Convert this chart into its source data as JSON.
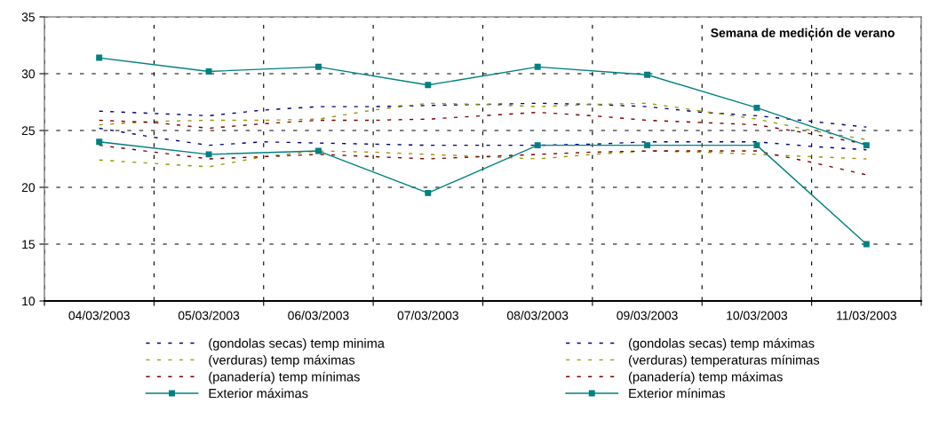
{
  "chart_data": {
    "type": "line",
    "title": "Semana de medición de verano",
    "x": [
      "2003-03-04T12:00",
      "2003-03-05T00:00",
      "2003-03-05T12:00",
      "2003-03-06T00:00",
      "2003-03-06T12:00",
      "2003-03-07T00:00",
      "2003-03-07T12:00",
      "2003-03-08T00:00",
      "2003-03-08T12:00",
      "2003-03-09T00:00",
      "2003-03-09T12:00",
      "2003-03-10T00:00",
      "2003-03-10T12:00",
      "2003-03-11T00:00",
      "2003-03-11T12:00"
    ],
    "xlim": [
      "2003-03-04T00:00",
      "2003-03-12T00:00"
    ],
    "xticks": [
      {
        "value": "2003-03-04T00:00",
        "label": null
      },
      {
        "value": "2003-03-04T12:00",
        "label": "04/03/2003"
      },
      {
        "value": "2003-03-05T00:00",
        "label": null
      },
      {
        "value": "2003-03-05T12:00",
        "label": "05/03/2003"
      },
      {
        "value": "2003-03-06T00:00",
        "label": null
      },
      {
        "value": "2003-03-06T12:00",
        "label": "06/03/2003"
      },
      {
        "value": "2003-03-07T00:00",
        "label": null
      },
      {
        "value": "2003-03-07T12:00",
        "label": "07/03/2003"
      },
      {
        "value": "2003-03-08T00:00",
        "label": null
      },
      {
        "value": "2003-03-08T12:00",
        "label": "08/03/2003"
      },
      {
        "value": "2003-03-09T00:00",
        "label": null
      },
      {
        "value": "2003-03-09T12:00",
        "label": "09/03/2003"
      },
      {
        "value": "2003-03-10T00:00",
        "label": null
      },
      {
        "value": "2003-03-10T12:00",
        "label": "10/03/2003"
      },
      {
        "value": "2003-03-11T00:00",
        "label": null
      },
      {
        "value": "2003-03-11T12:00",
        "label": "11/03/2003"
      },
      {
        "value": "2003-03-12T00:00",
        "label": null
      }
    ],
    "ylim": [
      10,
      35
    ],
    "yticks": [
      10,
      15,
      20,
      25,
      30,
      35
    ],
    "grid": true,
    "legend": "bottom",
    "line_style": "dashed",
    "marker": "none",
    "series": [
      {
        "name": "(gondolas secas) temp minima",
        "color": "#000080",
        "values": [
          25.2,
          24.4,
          23.7,
          24.0,
          23.9,
          23.8,
          23.7,
          23.7,
          23.7,
          23.8,
          24.0,
          24.0,
          24.0,
          23.6,
          23.3
        ]
      },
      {
        "name": "(gondolas secas) temp máximas",
        "color": "#000080",
        "values": [
          26.7,
          26.5,
          26.3,
          26.8,
          27.1,
          27.1,
          27.2,
          27.3,
          27.4,
          27.3,
          27.1,
          26.6,
          26.3,
          25.8,
          25.3
        ]
      },
      {
        "name": "(verduras) temp máximas",
        "color": "#999900",
        "values": [
          25.5,
          25.8,
          25.9,
          25.9,
          26.0,
          26.8,
          27.4,
          27.3,
          27.1,
          27.3,
          27.4,
          26.7,
          26.0,
          25.0,
          24.2
        ]
      },
      {
        "name": "(verduras) temperaturas mínimas",
        "color": "#999900",
        "values": [
          22.4,
          22.1,
          21.8,
          22.7,
          23.2,
          23.1,
          22.9,
          22.7,
          22.5,
          22.9,
          23.2,
          23.1,
          22.9,
          22.7,
          22.5
        ]
      },
      {
        "name": "(panadería) temp mínimas",
        "color": "#800000",
        "values": [
          23.7,
          23.1,
          22.5,
          22.7,
          22.9,
          22.7,
          22.5,
          22.7,
          22.9,
          23.1,
          23.2,
          23.2,
          23.2,
          22.2,
          21.1
        ]
      },
      {
        "name": "(panadería) temp máximas",
        "color": "#800000",
        "values": [
          25.9,
          25.7,
          25.2,
          25.6,
          25.9,
          25.9,
          26.0,
          26.3,
          26.6,
          26.3,
          25.9,
          25.7,
          25.5,
          24.7,
          23.8
        ]
      },
      {
        "name": "Exterior máximas",
        "color": "#008080",
        "line_style": "solid",
        "marker": "square",
        "x": [
          "2003-03-04T12:00",
          "2003-03-05T12:00",
          "2003-03-06T12:00",
          "2003-03-07T12:00",
          "2003-03-08T12:00",
          "2003-03-09T12:00",
          "2003-03-10T12:00",
          "2003-03-11T12:00"
        ],
        "values": [
          31.4,
          30.2,
          30.6,
          29.0,
          30.6,
          29.9,
          27.0,
          23.7
        ]
      },
      {
        "name": "Exterior mínimas",
        "color": "#008080",
        "line_style": "solid",
        "marker": "square",
        "x": [
          "2003-03-04T12:00",
          "2003-03-05T12:00",
          "2003-03-06T12:00",
          "2003-03-07T12:00",
          "2003-03-08T12:00",
          "2003-03-09T12:00",
          "2003-03-10T12:00",
          "2003-03-11T12:00"
        ],
        "values": [
          24.0,
          22.9,
          23.2,
          19.5,
          23.7,
          23.7,
          23.7,
          15.0
        ]
      }
    ]
  }
}
